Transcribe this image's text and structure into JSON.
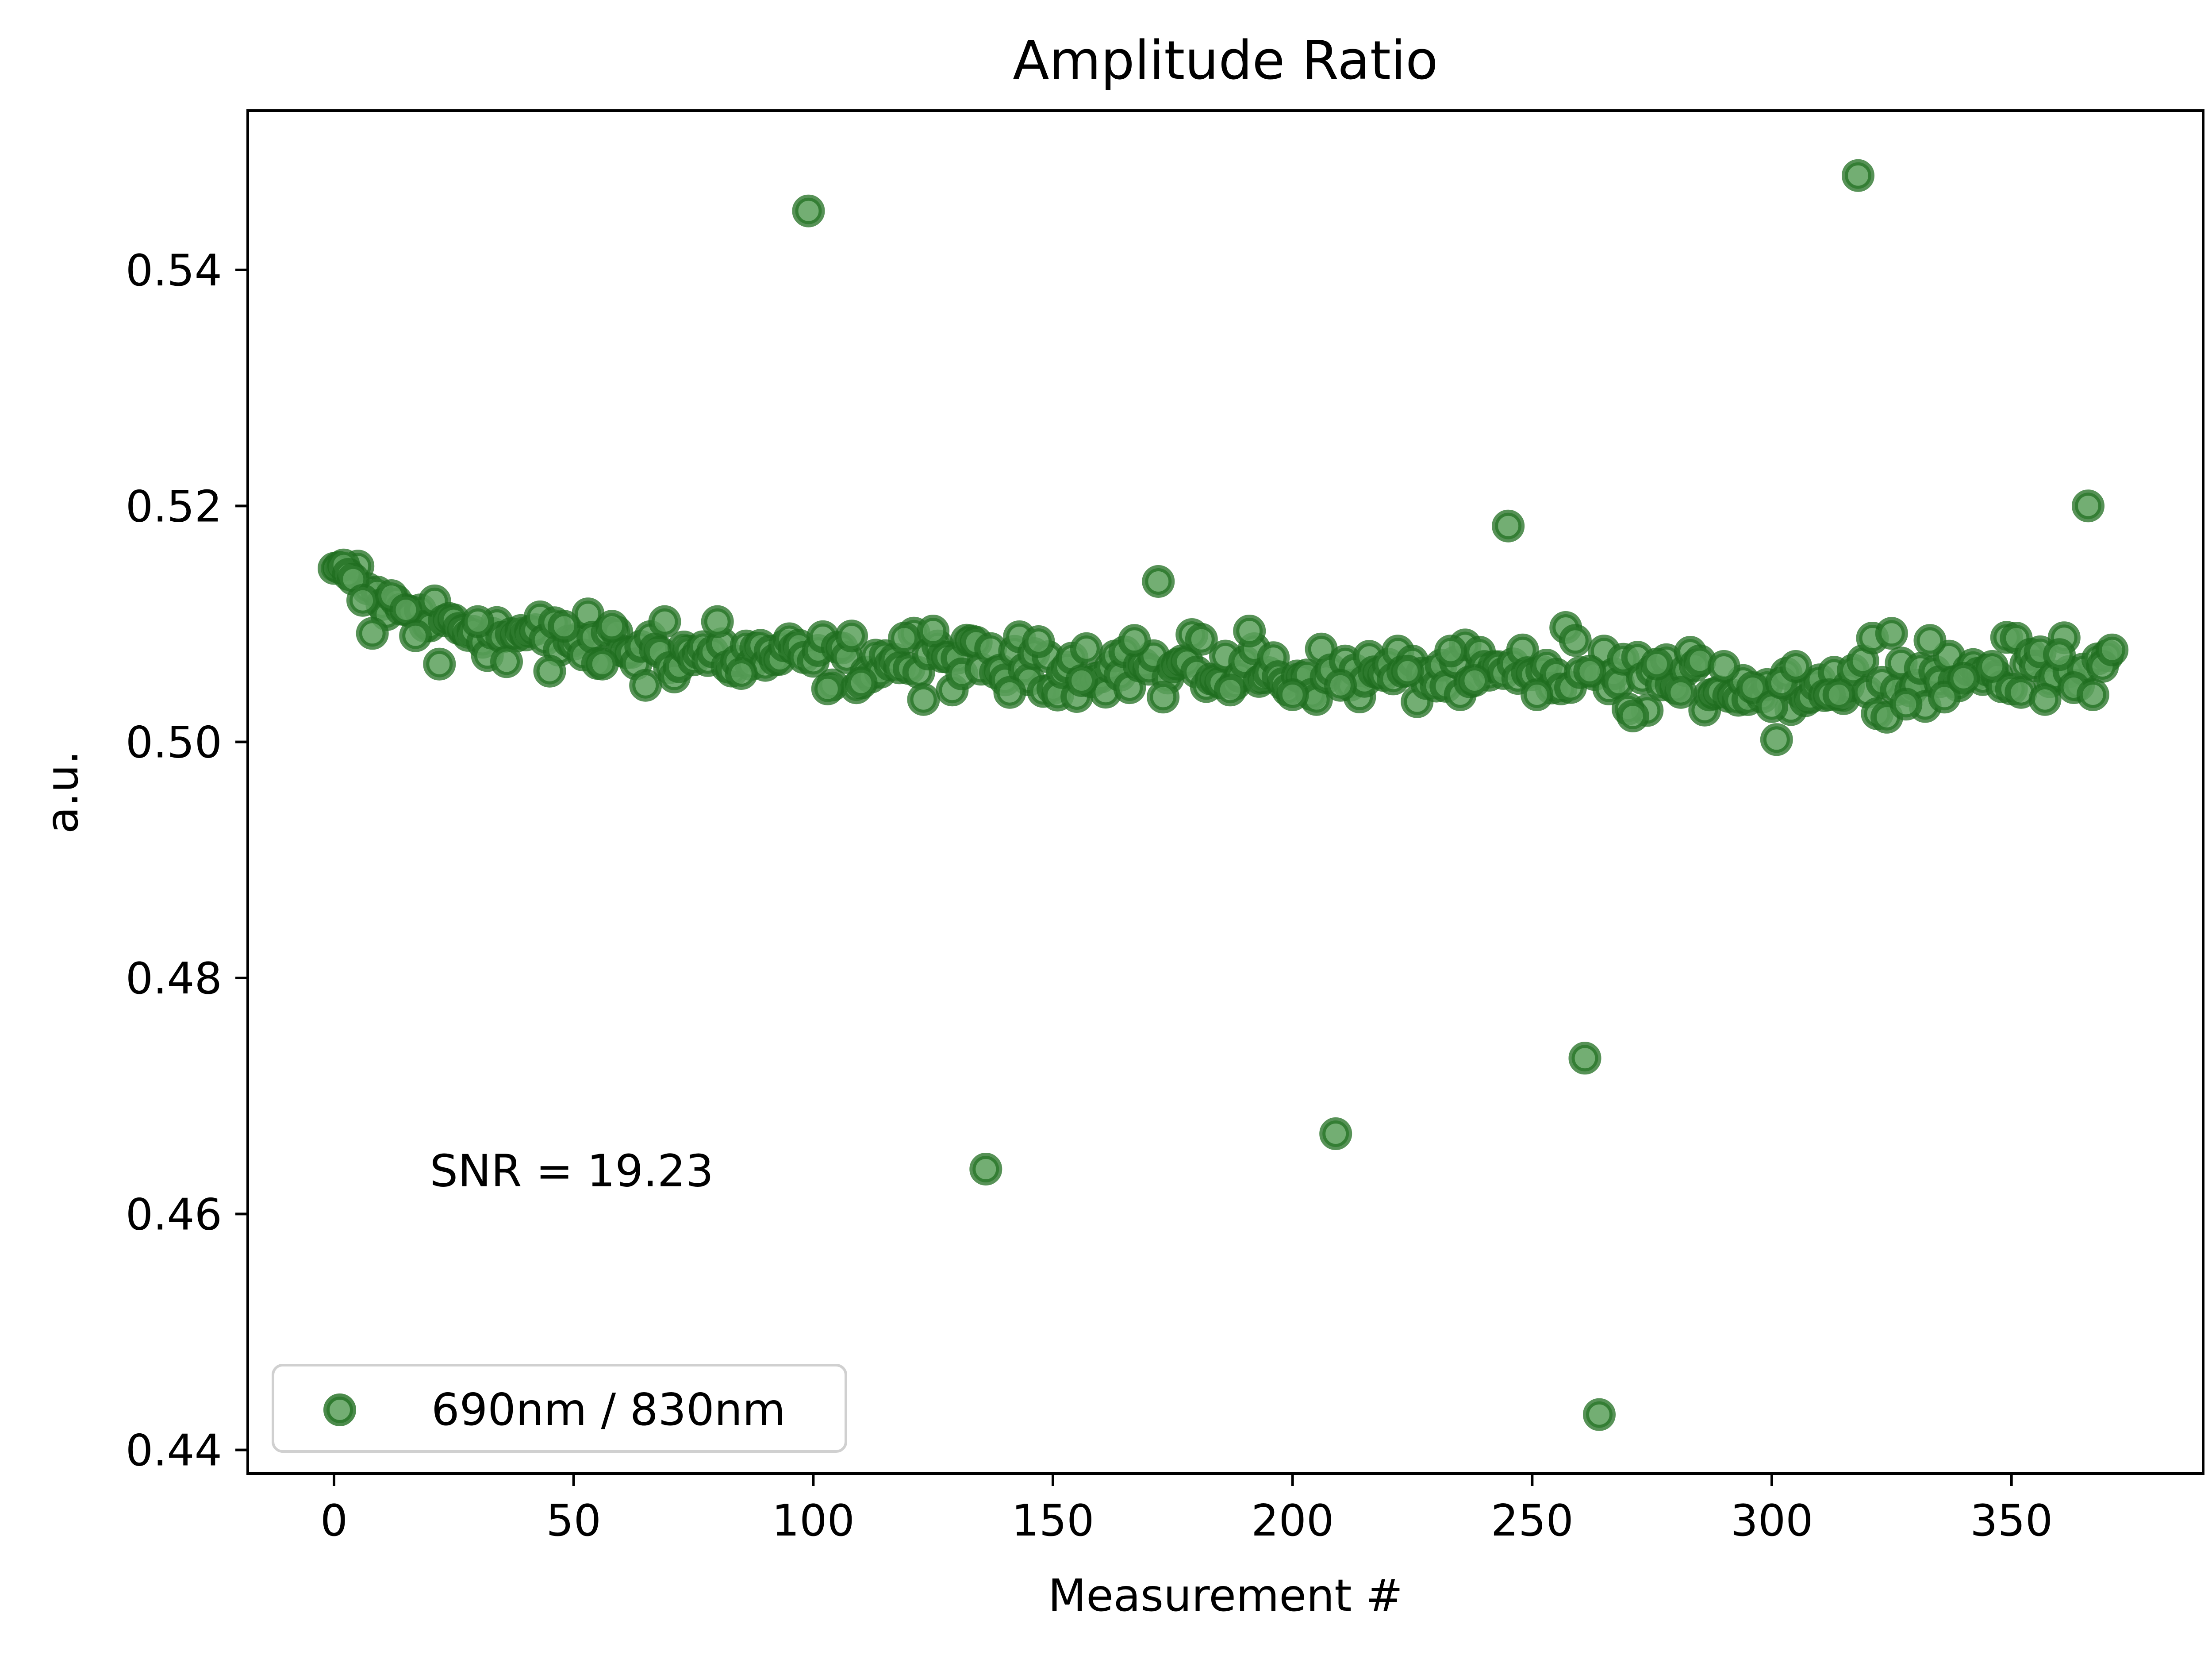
{
  "chart_data": {
    "type": "scatter",
    "title": "Amplitude Ratio",
    "xlabel": "Measurement #",
    "ylabel": "a.u.",
    "xlim": [
      -18,
      390
    ],
    "ylim": [
      0.438,
      0.5535
    ],
    "xticks": [
      0,
      50,
      100,
      150,
      200,
      250,
      300,
      350
    ],
    "xtick_labels": [
      "0",
      "50",
      "100",
      "150",
      "200",
      "250",
      "300",
      "350"
    ],
    "yticks": [
      0.44,
      0.46,
      0.48,
      0.5,
      0.52,
      0.54
    ],
    "ytick_labels": [
      "0.44",
      "0.46",
      "0.48",
      "0.50",
      "0.52",
      "0.54"
    ],
    "grid": false,
    "legend_position": "lower-left",
    "annotation": {
      "text": "SNR = 19.23",
      "x": 20,
      "y": 0.4637
    },
    "colors": {
      "face": "#5aa05a",
      "edge": "#1f6e1f",
      "axes": "#000000"
    },
    "series": [
      {
        "name": "690nm / 830nm",
        "baseline": {
          "x_start": 0,
          "x_end": 371,
          "anchors": [
            [
              0,
              0.5145
            ],
            [
              10,
              0.5115
            ],
            [
              30,
              0.5095
            ],
            [
              50,
              0.5085
            ],
            [
              70,
              0.5075
            ],
            [
              100,
              0.507
            ],
            [
              150,
              0.5065
            ],
            [
              200,
              0.5058
            ],
            [
              240,
              0.5055
            ],
            [
              270,
              0.5055
            ],
            [
              300,
              0.5045
            ],
            [
              340,
              0.5058
            ],
            [
              371,
              0.5075
            ]
          ],
          "noise": 0.0016
        },
        "points": [
          [
            1,
            0.5148
          ],
          [
            2,
            0.515
          ],
          [
            3,
            0.5142
          ],
          [
            4,
            0.5138
          ],
          [
            6,
            0.512
          ],
          [
            8,
            0.5092
          ],
          [
            12,
            0.5124
          ],
          [
            15,
            0.5112
          ],
          [
            17,
            0.509
          ],
          [
            22,
            0.5066
          ],
          [
            30,
            0.5102
          ],
          [
            36,
            0.5068
          ],
          [
            45,
            0.506
          ],
          [
            48,
            0.5098
          ],
          [
            56,
            0.5066
          ],
          [
            58,
            0.5098
          ],
          [
            65,
            0.5048
          ],
          [
            69,
            0.5102
          ],
          [
            80,
            0.5102
          ],
          [
            85,
            0.5058
          ],
          [
            99,
            0.545
          ],
          [
            103,
            0.5045
          ],
          [
            110,
            0.505
          ],
          [
            119,
            0.5088
          ],
          [
            123,
            0.5036
          ],
          [
            125,
            0.5094
          ],
          [
            136,
            0.4638
          ],
          [
            141,
            0.5042
          ],
          [
            147,
            0.5085
          ],
          [
            156,
            0.5052
          ],
          [
            167,
            0.5086
          ],
          [
            172,
            0.5136
          ],
          [
            173,
            0.5038
          ],
          [
            181,
            0.5087
          ],
          [
            187,
            0.5044
          ],
          [
            191,
            0.5094
          ],
          [
            200,
            0.504
          ],
          [
            209,
            0.4668
          ],
          [
            210,
            0.5048
          ],
          [
            224,
            0.506
          ],
          [
            233,
            0.5077
          ],
          [
            238,
            0.5052
          ],
          [
            245,
            0.5183
          ],
          [
            251,
            0.504
          ],
          [
            257,
            0.5097
          ],
          [
            259,
            0.5086
          ],
          [
            261,
            0.4732
          ],
          [
            262,
            0.506
          ],
          [
            264,
            0.443
          ],
          [
            270,
            0.5028
          ],
          [
            271,
            0.5022
          ],
          [
            276,
            0.5066
          ],
          [
            281,
            0.5042
          ],
          [
            290,
            0.5064
          ],
          [
            296,
            0.5046
          ],
          [
            300,
            0.503
          ],
          [
            301,
            0.5002
          ],
          [
            302,
            0.505
          ],
          [
            305,
            0.5064
          ],
          [
            312,
            0.504
          ],
          [
            314,
            0.504
          ],
          [
            318,
            0.548
          ],
          [
            321,
            0.5088
          ],
          [
            325,
            0.5092
          ],
          [
            328,
            0.5032
          ],
          [
            333,
            0.5086
          ],
          [
            336,
            0.5038
          ],
          [
            340,
            0.5054
          ],
          [
            346,
            0.5064
          ],
          [
            352,
            0.5042
          ],
          [
            357,
            0.5036
          ],
          [
            360,
            0.5074
          ],
          [
            363,
            0.5046
          ],
          [
            366,
            0.52
          ],
          [
            367,
            0.504
          ],
          [
            369,
            0.5064
          ],
          [
            371,
            0.5078
          ]
        ]
      }
    ]
  }
}
